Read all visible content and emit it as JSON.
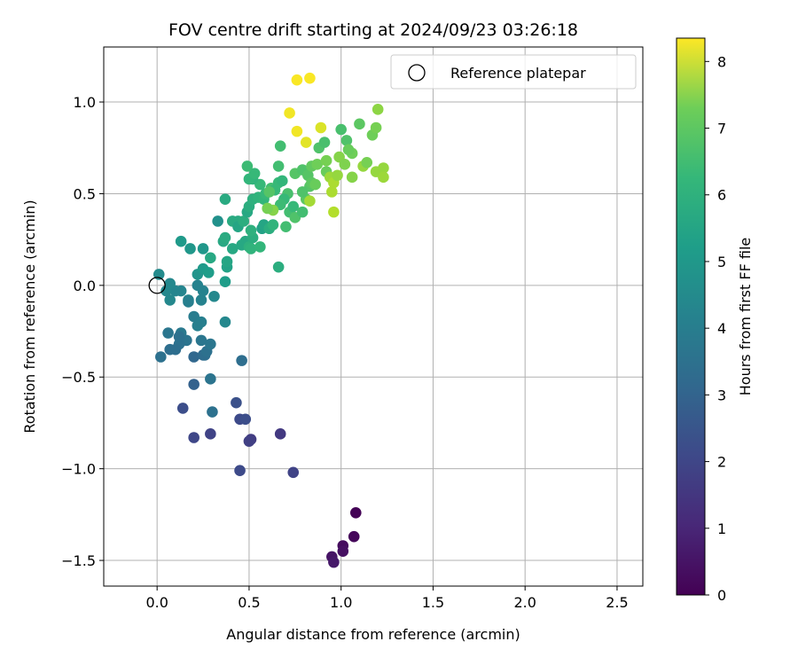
{
  "chart_data": {
    "type": "scatter",
    "title": "FOV centre drift starting at 2024/09/23 03:26:18",
    "xlabel": "Angular distance from reference (arcmin)",
    "ylabel": "Rotation from reference (arcmin)",
    "xlim": [
      -0.29,
      2.64
    ],
    "ylim": [
      -1.64,
      1.3
    ],
    "xticks": [
      0.0,
      0.5,
      1.0,
      1.5,
      2.0,
      2.5
    ],
    "xtick_labels": [
      "0.0",
      "0.5",
      "1.0",
      "1.5",
      "2.0",
      "2.5"
    ],
    "yticks": [
      -1.5,
      -1.0,
      -0.5,
      0.0,
      0.5,
      1.0
    ],
    "ytick_labels": [
      "−1.5",
      "−1.0",
      "−0.5",
      "0.0",
      "0.5",
      "1.0"
    ],
    "grid": true,
    "legend": {
      "position": "top-right",
      "entries": [
        "Reference platepar"
      ]
    },
    "reference_point": {
      "x": 0.0,
      "y": 0.0
    },
    "colorbar": {
      "label": "Hours from first FF file",
      "range": [
        0,
        8.35
      ],
      "ticks": [
        0,
        1,
        2,
        3,
        4,
        5,
        6,
        7,
        8
      ],
      "tick_labels": [
        "0",
        "1",
        "2",
        "3",
        "4",
        "5",
        "6",
        "7",
        "8"
      ],
      "colormap": "viridis"
    },
    "points": [
      [
        1.08,
        -1.24,
        0.05
      ],
      [
        1.07,
        -1.37,
        0.15
      ],
      [
        1.01,
        -1.42,
        0.25
      ],
      [
        1.01,
        -1.45,
        0.35
      ],
      [
        0.95,
        -1.48,
        0.45
      ],
      [
        0.96,
        -1.51,
        0.55
      ],
      [
        0.67,
        -0.81,
        1.4
      ],
      [
        0.51,
        -0.84,
        1.5
      ],
      [
        0.5,
        -0.85,
        1.6
      ],
      [
        0.29,
        -0.81,
        1.7
      ],
      [
        0.2,
        -0.83,
        1.8
      ],
      [
        0.45,
        -0.73,
        1.9
      ],
      [
        0.48,
        -0.73,
        2.0
      ],
      [
        0.43,
        -0.64,
        2.1
      ],
      [
        0.74,
        -1.02,
        1.7
      ],
      [
        0.45,
        -1.01,
        1.9
      ],
      [
        0.14,
        -0.67,
        2.0
      ],
      [
        0.2,
        -0.54,
        2.6
      ],
      [
        0.3,
        -0.69,
        3.1
      ],
      [
        0.29,
        -0.51,
        3.2
      ],
      [
        0.46,
        -0.41,
        3.0
      ],
      [
        0.2,
        -0.39,
        2.8
      ],
      [
        0.25,
        -0.38,
        2.9
      ],
      [
        0.26,
        -0.38,
        3.0
      ],
      [
        0.27,
        -0.36,
        3.1
      ],
      [
        0.29,
        -0.32,
        3.3
      ],
      [
        0.24,
        -0.3,
        3.3
      ],
      [
        0.16,
        -0.3,
        3.2
      ],
      [
        0.12,
        -0.32,
        3.1
      ],
      [
        0.1,
        -0.35,
        3.0
      ],
      [
        0.07,
        -0.35,
        3.0
      ],
      [
        0.02,
        -0.39,
        3.1
      ],
      [
        0.06,
        -0.26,
        3.3
      ],
      [
        0.13,
        -0.26,
        3.4
      ],
      [
        0.2,
        -0.17,
        3.5
      ],
      [
        0.22,
        -0.22,
        3.6
      ],
      [
        0.24,
        -0.2,
        3.6
      ],
      [
        0.37,
        -0.2,
        3.9
      ],
      [
        0.31,
        -0.06,
        3.9
      ],
      [
        0.25,
        -0.03,
        3.7
      ],
      [
        0.22,
        0.0,
        3.7
      ],
      [
        0.24,
        -0.08,
        3.7
      ],
      [
        0.17,
        -0.08,
        3.8
      ],
      [
        0.13,
        -0.03,
        3.8
      ],
      [
        0.1,
        -0.03,
        3.8
      ],
      [
        0.07,
        -0.08,
        3.9
      ],
      [
        0.05,
        -0.03,
        3.9
      ],
      [
        0.07,
        0.01,
        3.9
      ],
      [
        0.01,
        0.06,
        4.0
      ],
      [
        0.17,
        -0.09,
        3.6
      ],
      [
        0.12,
        -0.28,
        3.1
      ],
      [
        0.37,
        0.02,
        4.6
      ],
      [
        0.22,
        0.06,
        4.3
      ],
      [
        0.25,
        0.09,
        4.5
      ],
      [
        0.28,
        0.07,
        4.6
      ],
      [
        0.29,
        0.15,
        5.0
      ],
      [
        0.38,
        0.1,
        4.8
      ],
      [
        0.38,
        0.13,
        4.9
      ],
      [
        0.41,
        0.2,
        5.0
      ],
      [
        0.46,
        0.22,
        5.0
      ],
      [
        0.18,
        0.2,
        4.4
      ],
      [
        0.25,
        0.2,
        4.4
      ],
      [
        0.13,
        0.24,
        4.5
      ],
      [
        0.33,
        0.35,
        4.2
      ],
      [
        0.36,
        0.24,
        5.0
      ],
      [
        0.37,
        0.26,
        5.1
      ],
      [
        0.41,
        0.35,
        5.1
      ],
      [
        0.44,
        0.35,
        5.1
      ],
      [
        0.44,
        0.32,
        4.9
      ],
      [
        0.47,
        0.35,
        5.2
      ],
      [
        0.48,
        0.24,
        5.0
      ],
      [
        0.5,
        0.21,
        5.3
      ],
      [
        0.51,
        0.2,
        5.4
      ],
      [
        0.52,
        0.26,
        5.2
      ],
      [
        0.51,
        0.3,
        5.3
      ],
      [
        0.56,
        0.21,
        5.5
      ],
      [
        0.57,
        0.31,
        4.8
      ],
      [
        0.58,
        0.33,
        4.9
      ],
      [
        0.61,
        0.31,
        5.2
      ],
      [
        0.63,
        0.33,
        5.4
      ],
      [
        0.66,
        0.1,
        5.2
      ],
      [
        0.7,
        0.32,
        5.8
      ],
      [
        0.72,
        0.4,
        5.8
      ],
      [
        0.49,
        0.4,
        5.0
      ],
      [
        0.5,
        0.43,
        5.2
      ],
      [
        0.52,
        0.47,
        5.3
      ],
      [
        0.37,
        0.47,
        5.1
      ],
      [
        0.55,
        0.48,
        5.4
      ],
      [
        0.58,
        0.47,
        5.5
      ],
      [
        0.59,
        0.5,
        5.6
      ],
      [
        0.56,
        0.55,
        5.6
      ],
      [
        0.62,
        0.53,
        5.8
      ],
      [
        0.64,
        0.52,
        5.6
      ],
      [
        0.66,
        0.56,
        5.6
      ],
      [
        0.68,
        0.57,
        5.5
      ],
      [
        0.71,
        0.5,
        5.9
      ],
      [
        0.69,
        0.47,
        5.6
      ],
      [
        0.67,
        0.44,
        5.7
      ],
      [
        0.74,
        0.43,
        5.6
      ],
      [
        0.75,
        0.37,
        6.0
      ],
      [
        0.79,
        0.4,
        5.8
      ],
      [
        0.52,
        0.58,
        5.4
      ],
      [
        0.5,
        0.58,
        5.5
      ],
      [
        0.53,
        0.61,
        5.6
      ],
      [
        0.49,
        0.65,
        5.7
      ],
      [
        0.63,
        0.41,
        6.8
      ],
      [
        0.6,
        0.42,
        6.6
      ],
      [
        0.61,
        0.51,
        6.1
      ],
      [
        0.66,
        0.65,
        5.8
      ],
      [
        0.67,
        0.76,
        5.8
      ],
      [
        0.75,
        0.61,
        6.1
      ],
      [
        0.79,
        0.63,
        6.0
      ],
      [
        0.82,
        0.6,
        6.1
      ],
      [
        0.84,
        0.65,
        6.3
      ],
      [
        0.83,
        0.54,
        6.1
      ],
      [
        0.84,
        0.56,
        6.2
      ],
      [
        0.81,
        0.47,
        6.2
      ],
      [
        0.86,
        0.55,
        6.4
      ],
      [
        0.87,
        0.66,
        6.5
      ],
      [
        0.88,
        0.75,
        6.0
      ],
      [
        0.91,
        0.78,
        5.9
      ],
      [
        0.92,
        0.62,
        6.4
      ],
      [
        0.92,
        0.68,
        6.6
      ],
      [
        0.96,
        0.58,
        6.9
      ],
      [
        0.94,
        0.59,
        7.1
      ],
      [
        0.96,
        0.56,
        7.3
      ],
      [
        0.98,
        0.6,
        7.0
      ],
      [
        0.99,
        0.7,
        6.8
      ],
      [
        1.0,
        0.85,
        5.9
      ],
      [
        1.02,
        0.66,
        6.7
      ],
      [
        1.03,
        0.79,
        6.0
      ],
      [
        1.06,
        0.72,
        6.5
      ],
      [
        1.04,
        0.74,
        6.4
      ],
      [
        1.06,
        0.59,
        6.8
      ],
      [
        1.1,
        0.88,
        6.2
      ],
      [
        1.12,
        0.65,
        7.0
      ],
      [
        1.14,
        0.67,
        6.6
      ],
      [
        1.17,
        0.82,
        6.5
      ],
      [
        1.19,
        0.86,
        6.6
      ],
      [
        1.19,
        0.62,
        7.0
      ],
      [
        1.2,
        0.96,
        6.9
      ],
      [
        1.23,
        0.64,
        7.0
      ],
      [
        1.23,
        0.59,
        7.1
      ],
      [
        0.95,
        0.51,
        7.3
      ],
      [
        0.96,
        0.4,
        7.4
      ],
      [
        0.89,
        0.86,
        7.9
      ],
      [
        0.81,
        0.78,
        8.0
      ],
      [
        0.76,
        0.84,
        8.2
      ],
      [
        0.72,
        0.94,
        8.2
      ],
      [
        0.76,
        1.12,
        8.3
      ],
      [
        0.83,
        1.13,
        8.3
      ],
      [
        0.83,
        0.46,
        7.2
      ],
      [
        0.79,
        0.51,
        6.0
      ]
    ]
  }
}
